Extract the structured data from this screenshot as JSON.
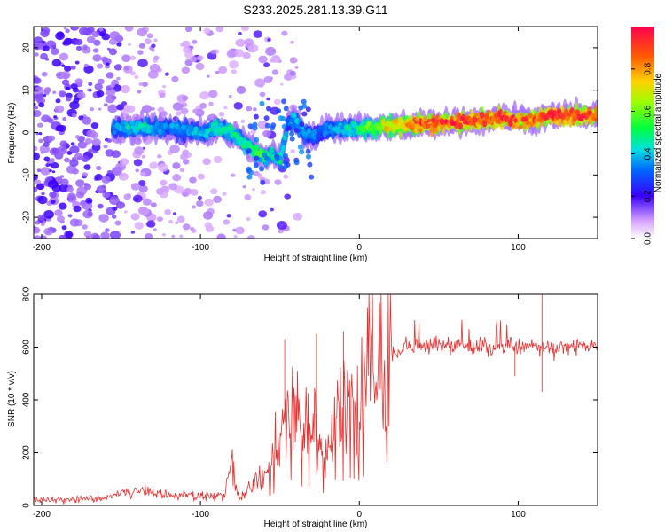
{
  "title": "S233.2025.281.13.39.G11",
  "chart_data": [
    {
      "type": "heatmap",
      "title": "S233.2025.281.13.39.G11",
      "xlabel": "Height of straight line (km)",
      "ylabel": "Frequency (Hz)",
      "xlim": [
        -205,
        150
      ],
      "ylim": [
        -25,
        25
      ],
      "xticks": [
        -200,
        -100,
        0,
        100
      ],
      "yticks": [
        -20,
        -10,
        0,
        10,
        20
      ],
      "colorbar": {
        "label": "Normalized spectral amplitude",
        "range": [
          0,
          1
        ],
        "ticks": [
          0.0,
          0.2,
          0.4,
          0.6,
          0.8
        ]
      },
      "ridge": {
        "x": [
          -155,
          -140,
          -120,
          -100,
          -90,
          -80,
          -70,
          -60,
          -55,
          -50,
          -45,
          -40,
          -35,
          -30,
          -25,
          -20,
          -10,
          0,
          10,
          20,
          40,
          60,
          80,
          90,
          100,
          110,
          120,
          135,
          150
        ],
        "y": [
          1,
          1,
          1,
          0,
          1,
          0,
          -3,
          -6,
          -5,
          -7,
          2,
          3,
          0,
          -1,
          0,
          1,
          1,
          1,
          1,
          1.5,
          2,
          2.5,
          3,
          3.5,
          3,
          3,
          4,
          4,
          4
        ],
        "amplitude": [
          0.35,
          0.45,
          0.35,
          0.4,
          0.45,
          0.45,
          0.5,
          0.55,
          0.45,
          0.5,
          0.35,
          0.4,
          0.4,
          0.35,
          0.3,
          0.35,
          0.4,
          0.5,
          0.6,
          0.75,
          0.9,
          0.95,
          0.9,
          0.95,
          0.85,
          0.9,
          0.95,
          0.95,
          0.9
        ]
      },
      "noise_region": [
        -205,
        -78
      ]
    },
    {
      "type": "line",
      "xlabel": "Height of straight line (km)",
      "ylabel": "SNR (10 * v/v)",
      "xlim": [
        -205,
        150
      ],
      "ylim": [
        0,
        800
      ],
      "xticks": [
        -200,
        -100,
        0,
        100
      ],
      "yticks": [
        0,
        200,
        400,
        600,
        800
      ],
      "color": "#e83030",
      "series": [
        {
          "name": "SNR",
          "x": [
            -205,
            -180,
            -160,
            -150,
            -140,
            -120,
            -100,
            -85,
            -80,
            -78,
            -75,
            -70,
            -60,
            -50,
            -45,
            -40,
            -35,
            -30,
            -25,
            -20,
            -15,
            -10,
            -5,
            0,
            5,
            10,
            15,
            20,
            25,
            30,
            40,
            50,
            60,
            70,
            80,
            90,
            100,
            110,
            115,
            120,
            130,
            140,
            150
          ],
          "y": [
            20,
            22,
            25,
            50,
            55,
            40,
            35,
            30,
            180,
            70,
            30,
            60,
            120,
            220,
            380,
            400,
            250,
            300,
            200,
            180,
            300,
            380,
            420,
            380,
            500,
            560,
            570,
            580,
            590,
            600,
            605,
            610,
            600,
            600,
            605,
            605,
            600,
            605,
            600,
            595,
            600,
            600,
            600
          ]
        }
      ]
    }
  ]
}
